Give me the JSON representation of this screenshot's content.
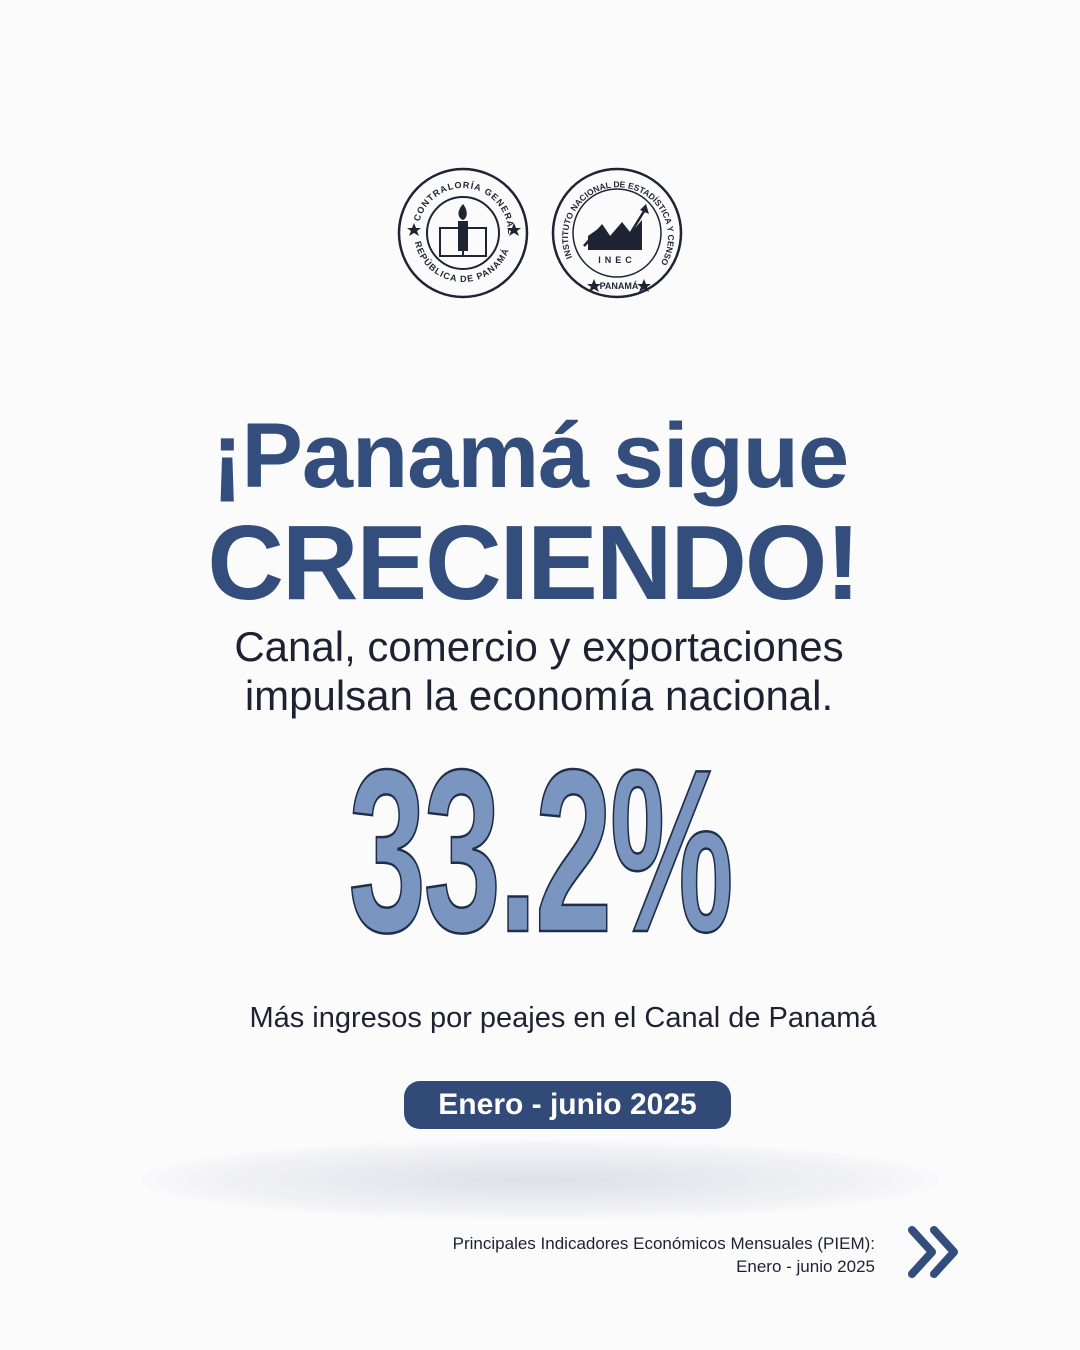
{
  "logos": {
    "contraloria": {
      "top_text": "CONTRALORÍA GENERAL",
      "bottom_text": "REPÚBLICA DE PANAMÁ",
      "icon": "torch-book-icon"
    },
    "inec": {
      "ring_text": "INSTITUTO NACIONAL DE ESTADÍSTICA Y CENSO",
      "center_text": "INEC",
      "bottom_text": "PANAMÁ",
      "icon": "growth-chart-buildings-icon"
    }
  },
  "headline": {
    "line1": "¡Panamá sigue",
    "line2": "CRECIENDO!"
  },
  "subtitle": {
    "line1": "Canal, comercio y exportaciones",
    "line2": "impulsan la economía nacional."
  },
  "stat": {
    "value": "33.2%",
    "caption": "Más ingresos por peajes en el Canal de Panamá"
  },
  "period_badge": "Enero - junio 2025",
  "source": {
    "line1": "Principales Indicadores Económicos Mensuales (PIEM):",
    "line2": "Enero - junio 2025"
  },
  "next_icon": "double-chevron-right-icon",
  "colors": {
    "primary": "#334d7c",
    "stat_fill": "#7a95c0",
    "text": "#1d2233",
    "background": "#fbfbfc"
  }
}
